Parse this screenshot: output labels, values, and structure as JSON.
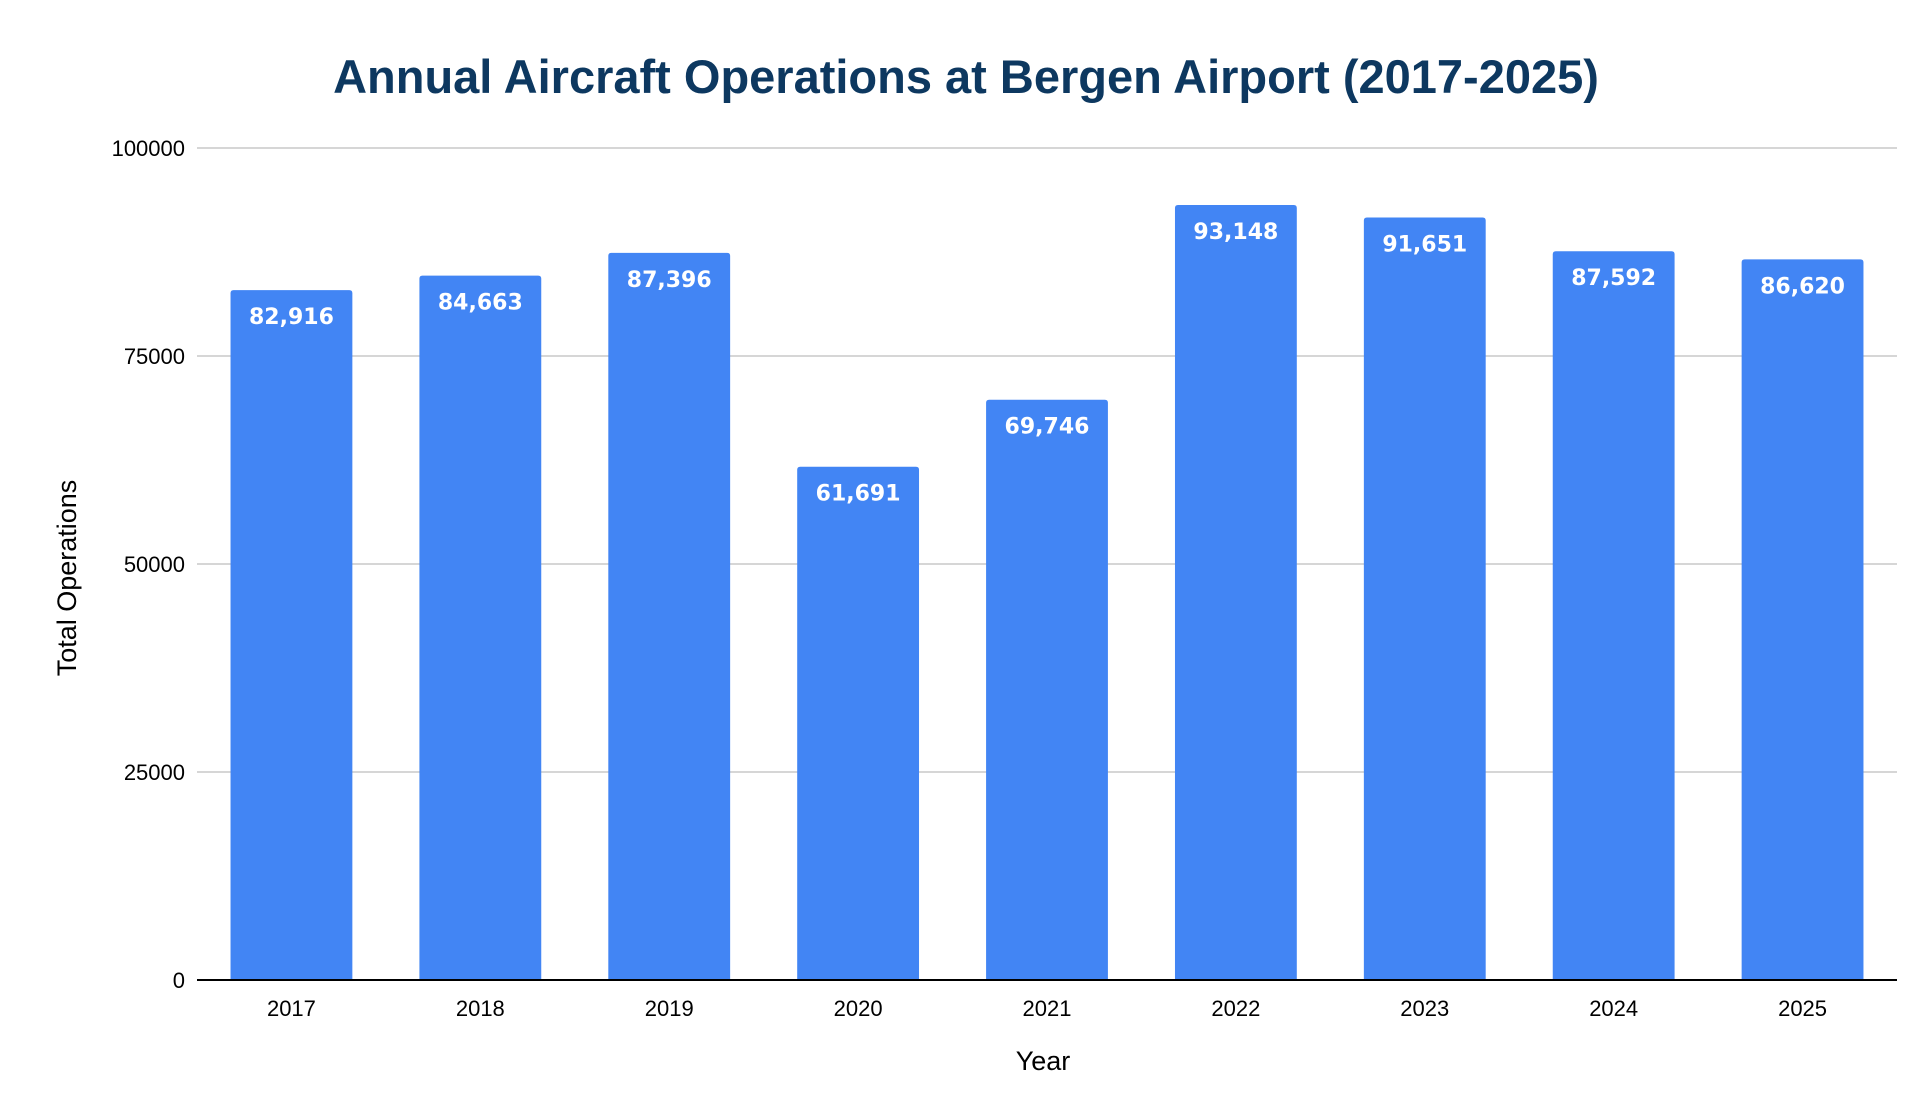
{
  "chart_data": {
    "type": "bar",
    "title": "Annual Aircraft Operations at Bergen Airport (2017-2025)",
    "xlabel": "Year",
    "ylabel": "Total Operations",
    "categories": [
      "2017",
      "2018",
      "2019",
      "2020",
      "2021",
      "2022",
      "2023",
      "2024",
      "2025"
    ],
    "values": [
      82916,
      84663,
      87396,
      61691,
      69746,
      93148,
      91651,
      87592,
      86620
    ],
    "data_labels": [
      "82,916",
      "84,663",
      "87,396",
      "61,691",
      "69,746",
      "93,148",
      "91,651",
      "87,592",
      "86,620"
    ],
    "ylim": [
      0,
      100000
    ],
    "yticks": [
      0,
      25000,
      50000,
      75000,
      100000
    ],
    "ytick_labels": [
      "0",
      "25000",
      "50000",
      "75000",
      "100000"
    ],
    "grid": true,
    "legend": "none",
    "colors": {
      "bar": "#4285f4",
      "title": "#0d3860",
      "grid": "#c8c8c8",
      "axis": "#000000",
      "data_label": "#ffffff"
    }
  }
}
